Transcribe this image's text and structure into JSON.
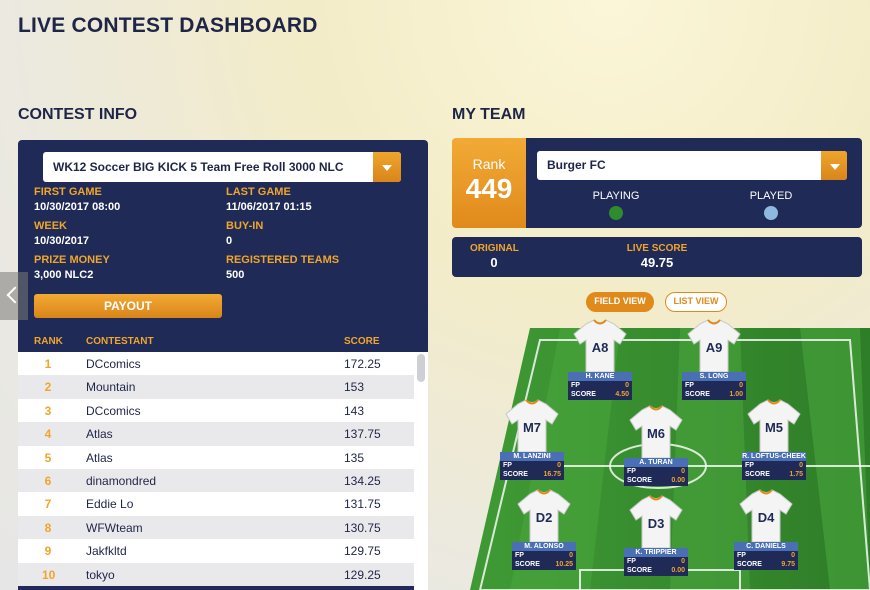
{
  "page": {
    "title": "LIVE CONTEST DASHBOARD"
  },
  "contest_info": {
    "heading": "CONTEST INFO",
    "selected_contest": "WK12 Soccer BIG KICK 5 Team Free Roll 3000 NLC",
    "first_game_label": "FIRST GAME",
    "first_game": "10/30/2017 08:00",
    "last_game_label": "LAST GAME",
    "last_game": "11/06/2017 01:15",
    "week_label": "WEEK",
    "week": "10/30/2017",
    "buy_in_label": "BUY-IN",
    "buy_in": "0",
    "prize_money_label": "PRIZE MONEY",
    "prize_money": "3,000 NLC2",
    "registered_teams_label": "REGISTERED TEAMS",
    "registered_teams": "500",
    "payout_label": "PAYOUT",
    "columns": {
      "rank": "RANK",
      "contestant": "CONTESTANT",
      "score": "SCORE"
    },
    "rows": [
      {
        "rank": "1",
        "name": "DCcomics",
        "score": "172.25"
      },
      {
        "rank": "2",
        "name": "Mountain",
        "score": "153"
      },
      {
        "rank": "3",
        "name": "DCcomics",
        "score": "143"
      },
      {
        "rank": "4",
        "name": "Atlas",
        "score": "137.75"
      },
      {
        "rank": "5",
        "name": "Atlas",
        "score": "135"
      },
      {
        "rank": "6",
        "name": "dinamondred",
        "score": "134.25"
      },
      {
        "rank": "7",
        "name": "Eddie Lo",
        "score": "131.75"
      },
      {
        "rank": "8",
        "name": "WFWteam",
        "score": "130.75"
      },
      {
        "rank": "9",
        "name": "Jakfkltd",
        "score": "129.75"
      },
      {
        "rank": "10",
        "name": "tokyo",
        "score": "129.25"
      }
    ]
  },
  "my_team": {
    "heading": "MY TEAM",
    "rank_label": "Rank",
    "rank": "449",
    "team_name": "Burger FC",
    "playing_label": "PLAYING",
    "played_label": "PLAYED",
    "original_label": "ORIGINAL",
    "original": "0",
    "live_score_label": "LIVE SCORE",
    "live_score": "49.75",
    "field_view_label": "FIELD VIEW",
    "list_view_label": "LIST VIEW",
    "players": [
      {
        "code": "A8",
        "name": "H. KANE",
        "fp": "0",
        "score": "4.50"
      },
      {
        "code": "A9",
        "name": "S. LONG",
        "fp": "0",
        "score": "1.00"
      },
      {
        "code": "M7",
        "name": "M. LANZINI",
        "fp": "0",
        "score": "16.75"
      },
      {
        "code": "M6",
        "name": "A. TURAN",
        "fp": "0",
        "score": "0.00"
      },
      {
        "code": "M5",
        "name": "R. LOFTUS-CHEEK",
        "fp": "0",
        "score": "1.75"
      },
      {
        "code": "D2",
        "name": "M. ALONSO",
        "fp": "0",
        "score": "10.25"
      },
      {
        "code": "D3",
        "name": "K. TRIPPIER",
        "fp": "0",
        "score": "0.00"
      },
      {
        "code": "D4",
        "name": "C. DANIELS",
        "fp": "0",
        "score": "9.75"
      }
    ],
    "fp_label": "FP",
    "score_label": "SCORE"
  },
  "colors": {
    "navy": "#1f2a56",
    "orange": "#f0a52c",
    "playing_dot": "#2e8b2e",
    "played_dot": "#8fb8e0"
  }
}
